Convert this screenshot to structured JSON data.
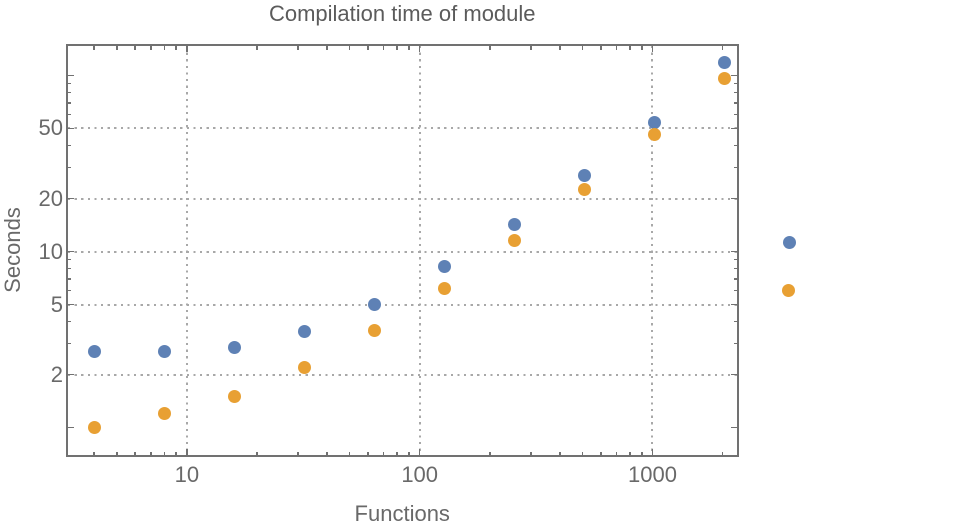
{
  "chart_data": {
    "type": "scatter",
    "title": "Compilation time of module",
    "xlabel": "Functions",
    "ylabel": "Seconds",
    "x_scale": "log",
    "y_scale": "log",
    "xlim": [
      3.04,
      2330
    ],
    "ylim": [
      0.69,
      149
    ],
    "grid": "dotted",
    "x": [
      4,
      8,
      16,
      32,
      64,
      128,
      256,
      512,
      1024,
      2048
    ],
    "series": [
      {
        "name": "series-1-blue",
        "color": "#5E81B5",
        "values": [
          2.7,
          2.7,
          2.85,
          3.5,
          5.0,
          8.2,
          14.3,
          27,
          54,
          118
        ]
      },
      {
        "name": "series-2-orange",
        "color": "#E8A033",
        "values": [
          1.0,
          1.2,
          1.5,
          2.2,
          3.55,
          6.2,
          11.6,
          22.5,
          46,
          96
        ]
      }
    ],
    "x_major_ticks": [
      {
        "value": 10,
        "label": "10"
      },
      {
        "value": 100,
        "label": "100"
      },
      {
        "value": 1000,
        "label": "1000"
      }
    ],
    "x_minor_ticks": [
      4,
      5,
      6,
      7,
      8,
      9,
      20,
      30,
      40,
      50,
      60,
      70,
      80,
      90,
      200,
      300,
      400,
      500,
      600,
      700,
      800,
      900,
      2000
    ],
    "y_major_ticks": [
      {
        "value": 1,
        "label": ""
      },
      {
        "value": 2,
        "label": "2"
      },
      {
        "value": 5,
        "label": "5"
      },
      {
        "value": 10,
        "label": "10"
      },
      {
        "value": 20,
        "label": "20"
      },
      {
        "value": 50,
        "label": "50"
      },
      {
        "value": 100,
        "label": ""
      }
    ],
    "y_minor_ticks": [
      3,
      4,
      6,
      7,
      8,
      9,
      30,
      40,
      60,
      70,
      80,
      90
    ],
    "x_gridlines": [
      10,
      100,
      1000
    ],
    "y_gridlines": [
      2,
      5,
      10,
      20,
      50
    ],
    "legend_markers": [
      {
        "series": "series-1-blue",
        "color": "#5E81B5",
        "label": ""
      },
      {
        "series": "series-2-orange",
        "color": "#E8A033",
        "label": ""
      }
    ]
  },
  "colors": {
    "blue": "#5E81B5",
    "orange": "#E8A033",
    "frame": "#717171",
    "grid": "#A8A8A8",
    "text": "#696969",
    "title": "#5B5B5B",
    "background": "#FFFFFF"
  }
}
